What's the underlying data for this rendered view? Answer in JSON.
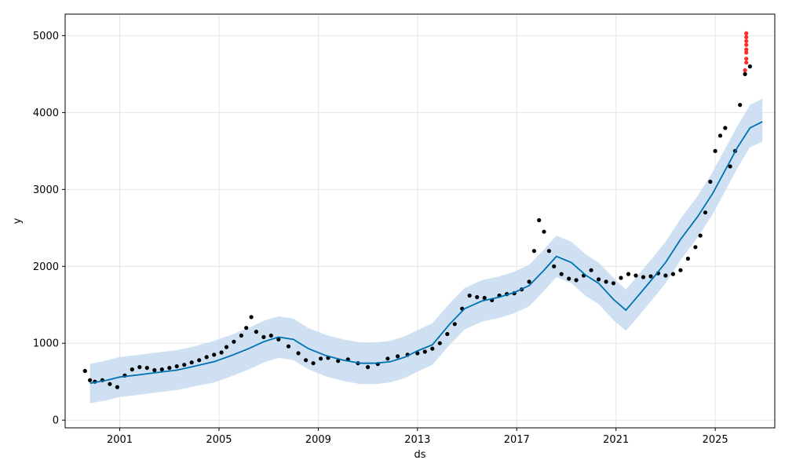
{
  "chart_data": {
    "type": "line",
    "title": "",
    "xlabel": "ds",
    "ylabel": "y",
    "xlim": [
      1998.8,
      2027.4
    ],
    "ylim": [
      -100,
      5280
    ],
    "grid": true,
    "legend": "none",
    "x_ticks": [
      {
        "value": 2001,
        "label": "2001"
      },
      {
        "value": 2005,
        "label": "2005"
      },
      {
        "value": 2009,
        "label": "2009"
      },
      {
        "value": 2013,
        "label": "2013"
      },
      {
        "value": 2017,
        "label": "2017"
      },
      {
        "value": 2021,
        "label": "2021"
      },
      {
        "value": 2025,
        "label": "2025"
      }
    ],
    "y_ticks": [
      {
        "value": 0,
        "label": "0"
      },
      {
        "value": 1000,
        "label": "1000"
      },
      {
        "value": 2000,
        "label": "2000"
      },
      {
        "value": 3000,
        "label": "3000"
      },
      {
        "value": 4000,
        "label": "4000"
      },
      {
        "value": 5000,
        "label": "5000"
      }
    ],
    "colors": {
      "forecast_line": "#0072B2",
      "interval_fill": "#c6dbef",
      "actual_points": "#000000",
      "highlight_points": "#ff2a2a",
      "grid": "#e6e6e6"
    },
    "forecast": {
      "x": [
        1999.8,
        2000.5,
        2001.0,
        2001.8,
        2002.5,
        2003.3,
        2004.0,
        2004.8,
        2005.5,
        2006.2,
        2006.8,
        2007.4,
        2008.0,
        2008.6,
        2009.3,
        2010.0,
        2010.7,
        2011.3,
        2011.9,
        2012.5,
        2013.0,
        2013.6,
        2014.3,
        2014.9,
        2015.6,
        2016.3,
        2016.9,
        2017.5,
        2018.1,
        2018.6,
        2019.2,
        2019.8,
        2020.3,
        2020.9,
        2021.4,
        2021.9,
        2022.5,
        2023.0,
        2023.6,
        2024.3,
        2024.9,
        2025.4,
        2025.9,
        2026.4,
        2026.9
      ],
      "y": [
        480,
        520,
        560,
        590,
        620,
        650,
        700,
        760,
        840,
        930,
        1020,
        1080,
        1050,
        930,
        840,
        780,
        740,
        740,
        760,
        820,
        900,
        980,
        1250,
        1450,
        1550,
        1600,
        1660,
        1750,
        1950,
        2130,
        2050,
        1880,
        1780,
        1570,
        1430,
        1620,
        1850,
        2050,
        2350,
        2650,
        2950,
        3250,
        3550,
        3800,
        3880
      ],
      "upper": [
        730,
        780,
        820,
        850,
        880,
        910,
        960,
        1030,
        1110,
        1200,
        1290,
        1350,
        1320,
        1200,
        1110,
        1050,
        1010,
        1010,
        1030,
        1090,
        1170,
        1260,
        1520,
        1720,
        1820,
        1870,
        1930,
        2020,
        2220,
        2400,
        2320,
        2150,
        2050,
        1850,
        1700,
        1890,
        2120,
        2320,
        2620,
        2920,
        3230,
        3530,
        3830,
        4100,
        4180
      ],
      "lower": [
        220,
        260,
        300,
        330,
        360,
        390,
        440,
        490,
        570,
        660,
        750,
        810,
        780,
        660,
        570,
        510,
        470,
        470,
        490,
        550,
        630,
        720,
        980,
        1180,
        1280,
        1330,
        1390,
        1480,
        1680,
        1860,
        1780,
        1610,
        1510,
        1300,
        1160,
        1350,
        1580,
        1780,
        2080,
        2380,
        2680,
        2980,
        3280,
        3550,
        3620
      ]
    },
    "actual": {
      "x": [
        1999.6,
        1999.8,
        2000.0,
        2000.3,
        2000.6,
        2000.9,
        2001.2,
        2001.5,
        2001.8,
        2002.1,
        2002.4,
        2002.7,
        2003.0,
        2003.3,
        2003.6,
        2003.9,
        2004.2,
        2004.5,
        2004.8,
        2005.1,
        2005.3,
        2005.6,
        2005.9,
        2006.1,
        2006.3,
        2006.5,
        2006.8,
        2007.1,
        2007.4,
        2007.8,
        2008.2,
        2008.5,
        2008.8,
        2009.1,
        2009.4,
        2009.8,
        2010.2,
        2010.6,
        2011.0,
        2011.4,
        2011.8,
        2012.2,
        2012.6,
        2013.0,
        2013.3,
        2013.6,
        2013.9,
        2014.2,
        2014.5,
        2014.8,
        2015.1,
        2015.4,
        2015.7,
        2016.0,
        2016.3,
        2016.6,
        2016.9,
        2017.2,
        2017.5,
        2017.7,
        2017.9,
        2018.1,
        2018.3,
        2018.5,
        2018.8,
        2019.1,
        2019.4,
        2019.7,
        2020.0,
        2020.3,
        2020.6,
        2020.9,
        2021.2,
        2021.5,
        2021.8,
        2022.1,
        2022.4,
        2022.7,
        2023.0,
        2023.3,
        2023.6,
        2023.9,
        2024.2,
        2024.4,
        2024.6,
        2024.8,
        2025.0,
        2025.2,
        2025.4,
        2025.6,
        2025.8,
        2026.0,
        2026.2,
        2026.4
      ],
      "y": [
        640,
        520,
        500,
        520,
        470,
        430,
        580,
        660,
        690,
        680,
        650,
        660,
        680,
        700,
        720,
        750,
        780,
        820,
        850,
        880,
        950,
        1020,
        1100,
        1200,
        1340,
        1150,
        1080,
        1100,
        1050,
        960,
        870,
        780,
        740,
        800,
        810,
        770,
        790,
        740,
        690,
        730,
        800,
        830,
        850,
        870,
        890,
        930,
        1000,
        1120,
        1250,
        1450,
        1620,
        1600,
        1590,
        1560,
        1620,
        1640,
        1650,
        1700,
        1800,
        2200,
        2600,
        2450,
        2200,
        2000,
        1900,
        1840,
        1820,
        1880,
        1950,
        1830,
        1800,
        1780,
        1850,
        1900,
        1880,
        1860,
        1870,
        1910,
        1880,
        1900,
        1950,
        2100,
        2250,
        2400,
        2700,
        3100,
        3500,
        3700,
        3800,
        3300,
        3500,
        4100,
        4500,
        4600
      ]
    },
    "highlight": {
      "x": [
        2026.2,
        2026.25,
        2026.25,
        2026.25,
        2026.25,
        2026.25,
        2026.25,
        2026.25,
        2026.25
      ],
      "y": [
        4550,
        4650,
        4700,
        4780,
        4820,
        4880,
        4930,
        4980,
        5030
      ]
    }
  }
}
